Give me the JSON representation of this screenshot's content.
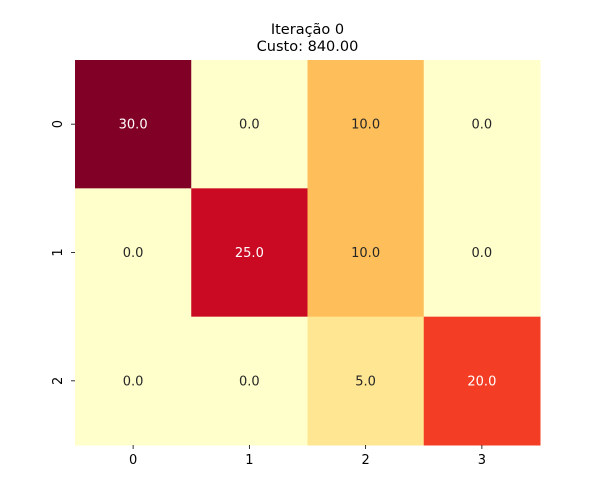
{
  "chart_data": {
    "type": "heatmap",
    "title_line1": "Iteração 0",
    "title_line2": "Custo: 840.00",
    "xlabel": "",
    "ylabel": "",
    "x_ticks": [
      "0",
      "1",
      "2",
      "3"
    ],
    "y_ticks": [
      "0",
      "1",
      "2"
    ],
    "values": [
      [
        30.0,
        0.0,
        10.0,
        0.0
      ],
      [
        0.0,
        25.0,
        10.0,
        0.0
      ],
      [
        0.0,
        0.0,
        5.0,
        20.0
      ]
    ],
    "value_format": "0.0",
    "colormap": "YlOrRd",
    "vmin": 0,
    "vmax": 30,
    "colorbar": false,
    "grid": false
  }
}
